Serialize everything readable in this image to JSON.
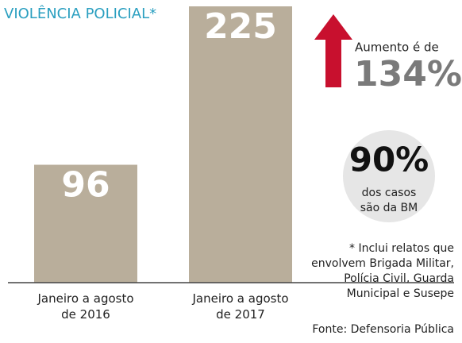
{
  "chart_data": {
    "type": "bar",
    "title": "VIOLÊNCIA POLICIAL*",
    "categories": [
      "Janeiro a agosto de 2016",
      "Janeiro a agosto de 2017"
    ],
    "values": [
      96,
      225
    ],
    "color": "#b9ae9b",
    "annotations": {
      "increase_label": "Aumento é de",
      "increase_value": "134%",
      "share_value": "90%",
      "share_text": [
        "dos casos",
        "são da BM"
      ],
      "footnote": [
        "* Inclui relatos que",
        "envolvem Brigada Militar,",
        "Polícia Civil, Guarda",
        "Municipal e Susepe"
      ],
      "source": "Fonte: Defensoria Pública"
    }
  }
}
